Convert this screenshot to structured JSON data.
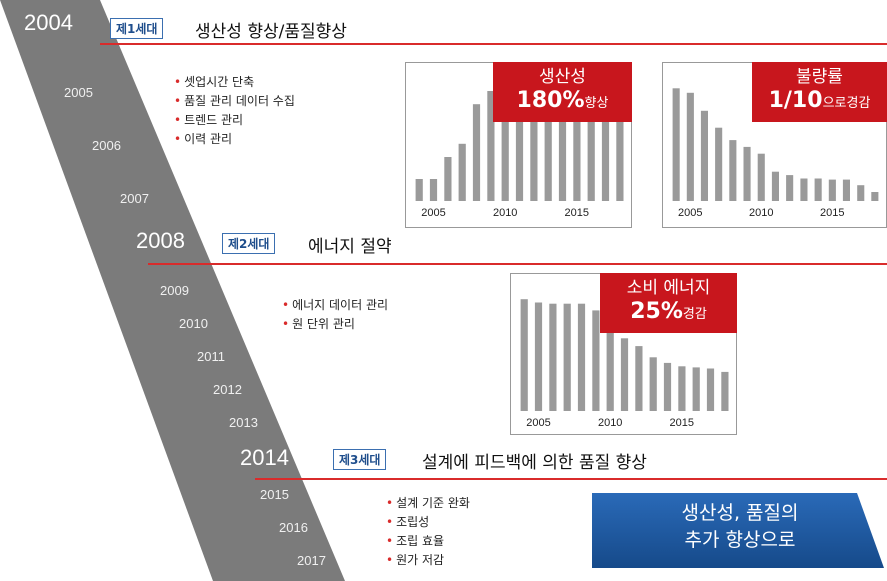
{
  "timeline": {
    "big_years": [
      "2004",
      "2008",
      "2014"
    ],
    "small_years": [
      "2005",
      "2006",
      "2007",
      "2009",
      "2010",
      "2011",
      "2012",
      "2013",
      "2015",
      "2016",
      "2017"
    ]
  },
  "generations": [
    {
      "badge": "제1세대",
      "title": "생산성 향상/품질향상",
      "bullets": [
        "셋업시간 단축",
        "품질 관리 데이터 수집",
        "트렌드 관리",
        "이력 관리"
      ]
    },
    {
      "badge": "제2세대",
      "title": "에너지 절약",
      "bullets": [
        "에너지 데이터 관리",
        "원 단위 관리"
      ]
    },
    {
      "badge": "제3세대",
      "title": "설계에 피드백에 의한 품질 향상",
      "bullets": [
        "설계 기준 완화",
        "조립성",
        "조립 효율",
        "원가 저감"
      ]
    }
  ],
  "callouts": {
    "productivity": {
      "line1": "생산성",
      "value": "180%",
      "suffix": "향상"
    },
    "defect": {
      "line1": "불량률",
      "value": "1/10",
      "suffix": "으로경감"
    },
    "energy": {
      "line1": "소비 에너지",
      "value": "25%",
      "suffix": "경감"
    }
  },
  "banner": {
    "line1": "생산성, 품질의",
    "line2": "추가 향상으로"
  },
  "colors": {
    "bar": "#9a9a9a",
    "accent_red": "#c8161d",
    "line_red": "#d92b2b",
    "timeline": "#7b7b7b",
    "badge_blue": "#1f4e8c",
    "banner_blue": "#1f5fa8"
  },
  "chart_data": [
    {
      "type": "bar",
      "x": [
        2004,
        2005,
        2006,
        2007,
        2008,
        2009,
        2010,
        2011,
        2012,
        2013,
        2014,
        2015,
        2016,
        2017,
        2018
      ],
      "values": [
        10,
        10,
        20,
        26,
        44,
        50,
        50,
        50,
        50,
        50,
        50,
        50,
        50,
        50,
        50
      ],
      "xticks": [
        "2005",
        "2010",
        "2015"
      ],
      "ylim": [
        0,
        60
      ]
    },
    {
      "type": "bar",
      "x": [
        2004,
        2005,
        2006,
        2007,
        2008,
        2009,
        2010,
        2011,
        2012,
        2013,
        2014,
        2015,
        2016,
        2017,
        2018
      ],
      "values": [
        100,
        96,
        80,
        65,
        54,
        48,
        42,
        26,
        23,
        20,
        20,
        19,
        19,
        14,
        8
      ],
      "xticks": [
        "2005",
        "2010",
        "2015"
      ],
      "ylim": [
        0,
        110
      ]
    },
    {
      "type": "bar",
      "x": [
        2004,
        2005,
        2006,
        2007,
        2008,
        2009,
        2010,
        2011,
        2012,
        2013,
        2014,
        2015,
        2016,
        2017,
        2018
      ],
      "values": [
        100,
        97,
        96,
        96,
        96,
        90,
        80,
        65,
        58,
        48,
        43,
        40,
        39,
        38,
        35
      ],
      "xticks": [
        "2005",
        "2010",
        "2015"
      ],
      "ylim": [
        0,
        110
      ]
    }
  ]
}
